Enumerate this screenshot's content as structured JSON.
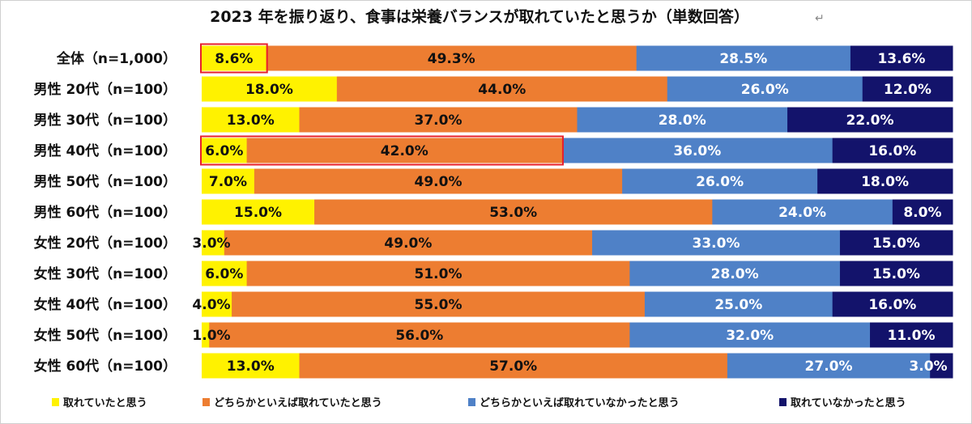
{
  "chart_data": {
    "type": "bar",
    "orientation": "horizontal",
    "stacked": true,
    "title": "2023 年を振り返り、食事は栄養バランスが取れていたと思うか（単数回答）",
    "title_mark": "↵",
    "categories": [
      "全体（n=1,000）",
      "男性 20代（n=100）",
      "男性 30代（n=100）",
      "男性 40代（n=100）",
      "男性 50代（n=100）",
      "男性 60代（n=100）",
      "女性 20代（n=100）",
      "女性 30代（n=100）",
      "女性 40代（n=100）",
      "女性 50代（n=100）",
      "女性 60代（n=100）"
    ],
    "series": [
      {
        "name": "取れていたと思う",
        "color": "#FFF200",
        "label_color": "#111111",
        "values": [
          8.6,
          18.0,
          13.0,
          6.0,
          7.0,
          15.0,
          3.0,
          6.0,
          4.0,
          1.0,
          13.0
        ]
      },
      {
        "name": "どちらかといえば取れていたと思う",
        "color": "#ED7D31",
        "label_color": "#111111",
        "values": [
          49.3,
          44.0,
          37.0,
          42.0,
          49.0,
          53.0,
          49.0,
          51.0,
          55.0,
          56.0,
          57.0
        ]
      },
      {
        "name": "どちらかといえば取れていなかったと思う",
        "color": "#4F81C7",
        "label_color": "#FFFFFF",
        "values": [
          28.5,
          26.0,
          28.0,
          36.0,
          26.0,
          24.0,
          33.0,
          28.0,
          25.0,
          32.0,
          27.0
        ]
      },
      {
        "name": "取れていなかったと思う",
        "color": "#13136B",
        "label_color": "#FFFFFF",
        "values": [
          13.6,
          12.0,
          22.0,
          16.0,
          18.0,
          8.0,
          15.0,
          15.0,
          16.0,
          11.0,
          3.0
        ]
      }
    ],
    "xlim": [
      0,
      100
    ],
    "value_format": "percent, 1 decimal",
    "grid": false,
    "legend_position": "bottom",
    "highlights": [
      {
        "category_index": 0,
        "series_indices": [
          0
        ],
        "color": "#E8202A"
      },
      {
        "category_index": 3,
        "series_indices": [
          0,
          1
        ],
        "color": "#E8202A"
      }
    ]
  }
}
